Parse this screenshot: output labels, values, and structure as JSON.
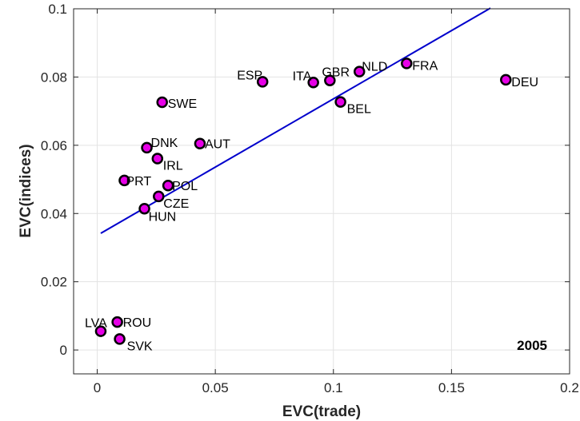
{
  "chart_data": {
    "type": "scatter",
    "title": "",
    "xlabel": "EVC(trade)",
    "ylabel": "EVC(indices)",
    "xlim": [
      -0.01,
      0.2
    ],
    "ylim": [
      -0.007,
      0.1
    ],
    "xticks": [
      0,
      0.05,
      0.1,
      0.15,
      0.2
    ],
    "xtick_labels": [
      "0",
      "0.05",
      "0.1",
      "0.15",
      "0.2"
    ],
    "yticks": [
      0,
      0.02,
      0.04,
      0.06,
      0.08,
      0.1
    ],
    "ytick_labels": [
      "0",
      "0.02",
      "0.04",
      "0.06",
      "0.08",
      "0.1"
    ],
    "grid": true,
    "annotation": "2005",
    "points": [
      {
        "label": "LVA",
        "x": 0.0015,
        "y": 0.0055
      },
      {
        "label": "ROU",
        "x": 0.0085,
        "y": 0.0082
      },
      {
        "label": "SVK",
        "x": 0.0095,
        "y": 0.0032
      },
      {
        "label": "PRT",
        "x": 0.0115,
        "y": 0.0497
      },
      {
        "label": "HUN",
        "x": 0.02,
        "y": 0.0414
      },
      {
        "label": "DNK",
        "x": 0.021,
        "y": 0.0593
      },
      {
        "label": "IRL",
        "x": 0.0255,
        "y": 0.0561
      },
      {
        "label": "CZE",
        "x": 0.026,
        "y": 0.045
      },
      {
        "label": "SWE",
        "x": 0.0275,
        "y": 0.0726
      },
      {
        "label": "POL",
        "x": 0.03,
        "y": 0.0482
      },
      {
        "label": "AUT",
        "x": 0.0435,
        "y": 0.0605
      },
      {
        "label": "ESP",
        "x": 0.07,
        "y": 0.0786
      },
      {
        "label": "ITA",
        "x": 0.0915,
        "y": 0.0784
      },
      {
        "label": "GBR",
        "x": 0.0985,
        "y": 0.079
      },
      {
        "label": "BEL",
        "x": 0.103,
        "y": 0.0727
      },
      {
        "label": "NLD",
        "x": 0.111,
        "y": 0.0816
      },
      {
        "label": "FRA",
        "x": 0.131,
        "y": 0.084
      },
      {
        "label": "DEU",
        "x": 0.173,
        "y": 0.0792
      }
    ],
    "fit_line": {
      "x": [
        0.0015,
        0.1665
      ],
      "y": [
        0.0342,
        0.1002
      ]
    },
    "colors": {
      "marker_fill": "#e600e6",
      "marker_edge": "#000000",
      "line": "#0000cc",
      "grid": "#e3e3e3",
      "axis": "#262626"
    }
  }
}
